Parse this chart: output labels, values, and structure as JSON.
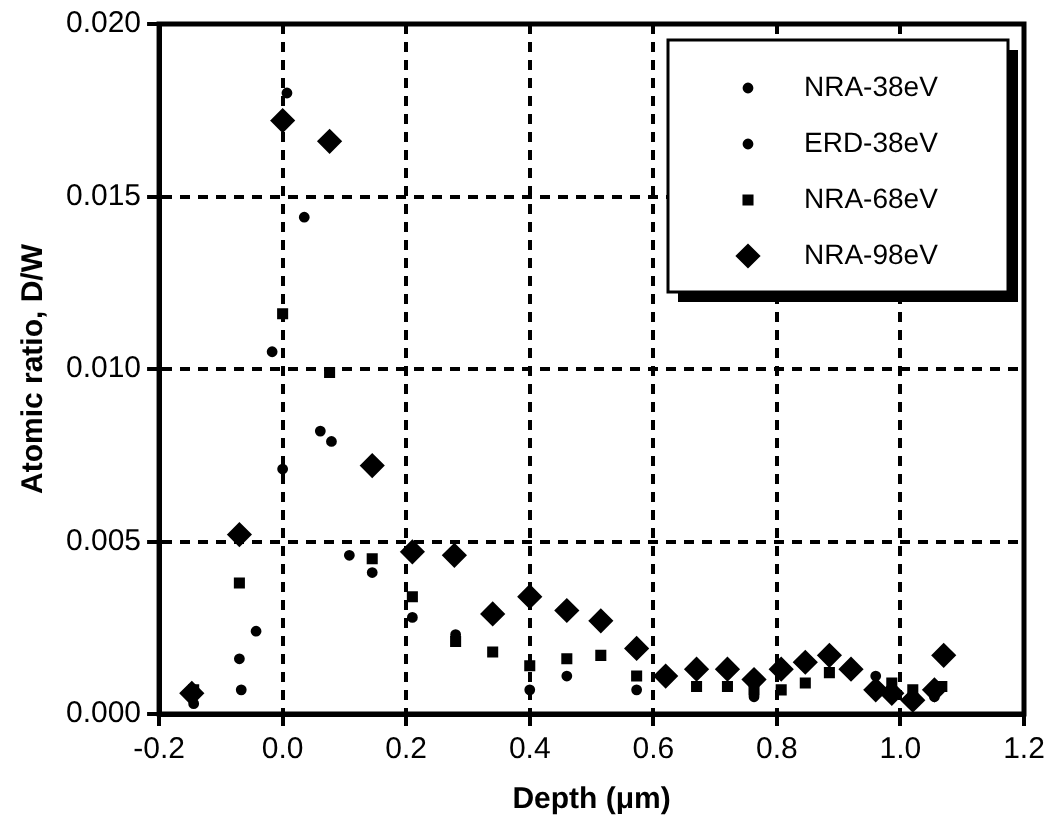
{
  "chart_data": {
    "type": "scatter",
    "xlabel": "Depth (μm)",
    "ylabel": "Atomic ratio, D/W",
    "xlim": [
      -0.2,
      1.2
    ],
    "xticks": [
      {
        "value": -0.2,
        "label": "-0.2"
      },
      {
        "value": 0,
        "label": "0.0"
      },
      {
        "value": 0.2,
        "label": "0.2"
      },
      {
        "value": 0.4,
        "label": "0.4"
      },
      {
        "value": 0.6,
        "label": "0.6"
      },
      {
        "value": 0.8,
        "label": "0.8"
      },
      {
        "value": 1.0,
        "label": "1.0"
      },
      {
        "value": 1.2,
        "label": "1.2"
      }
    ],
    "ylim": [
      0,
      0.02
    ],
    "yticks": [
      {
        "value": 0,
        "label": "0.000"
      },
      {
        "value": 0.005,
        "label": "0.005"
      },
      {
        "value": 0.01,
        "label": "0.010"
      },
      {
        "value": 0.015,
        "label": "0.015"
      },
      {
        "value": 0.02,
        "label": "0.020"
      }
    ],
    "grid": true,
    "legend": "top right",
    "series": [
      {
        "name": "NRA-38eV",
        "color": "#000000",
        "marker": "circle",
        "x": [
          -0.144,
          -0.07,
          0.0,
          0.079,
          0.145,
          0.21,
          0.28,
          0.4,
          0.46,
          0.573,
          0.763,
          0.96,
          1.055
        ],
        "values": [
          0.0003,
          0.0016,
          0.0071,
          0.0079,
          0.0041,
          0.0028,
          0.0023,
          0.0007,
          0.0011,
          0.0007,
          0.0005,
          0.0011,
          0.0005
        ]
      },
      {
        "name": "ERD-38eV",
        "color": "#000000",
        "marker": "circle",
        "x": [
          -0.067,
          -0.043,
          -0.017,
          0.007,
          0.035,
          0.061,
          0.108
        ],
        "values": [
          0.0007,
          0.0024,
          0.0105,
          0.018,
          0.0144,
          0.0082,
          0.0046
        ]
      },
      {
        "name": "NRA-68eV",
        "color": "#000000",
        "marker": "square",
        "x": [
          -0.144,
          -0.07,
          0.0,
          0.076,
          0.145,
          0.21,
          0.28,
          0.34,
          0.4,
          0.46,
          0.515,
          0.573,
          0.67,
          0.72,
          0.763,
          0.807,
          0.846,
          0.885,
          0.986,
          1.02,
          1.067
        ],
        "values": [
          0.0007,
          0.0038,
          0.0116,
          0.0099,
          0.0045,
          0.0034,
          0.0021,
          0.0018,
          0.0014,
          0.0016,
          0.0017,
          0.0011,
          0.0008,
          0.0008,
          0.0007,
          0.0007,
          0.0009,
          0.0012,
          0.0009,
          0.0007,
          0.0008
        ]
      },
      {
        "name": "NRA-98eV",
        "color": "#000000",
        "marker": "diamond",
        "x": [
          -0.147,
          -0.07,
          0.0,
          0.076,
          0.145,
          0.21,
          0.278,
          0.34,
          0.4,
          0.46,
          0.515,
          0.573,
          0.62,
          0.67,
          0.72,
          0.763,
          0.807,
          0.846,
          0.885,
          0.92,
          0.96,
          0.986,
          1.02,
          1.055,
          1.07
        ],
        "values": [
          0.0006,
          0.0052,
          0.0172,
          0.0166,
          0.0072,
          0.0047,
          0.0046,
          0.0029,
          0.0034,
          0.003,
          0.0027,
          0.0019,
          0.0011,
          0.0013,
          0.0013,
          0.001,
          0.0013,
          0.0015,
          0.0017,
          0.0013,
          0.0007,
          0.0006,
          0.0004,
          0.0007,
          0.0017
        ]
      }
    ]
  }
}
